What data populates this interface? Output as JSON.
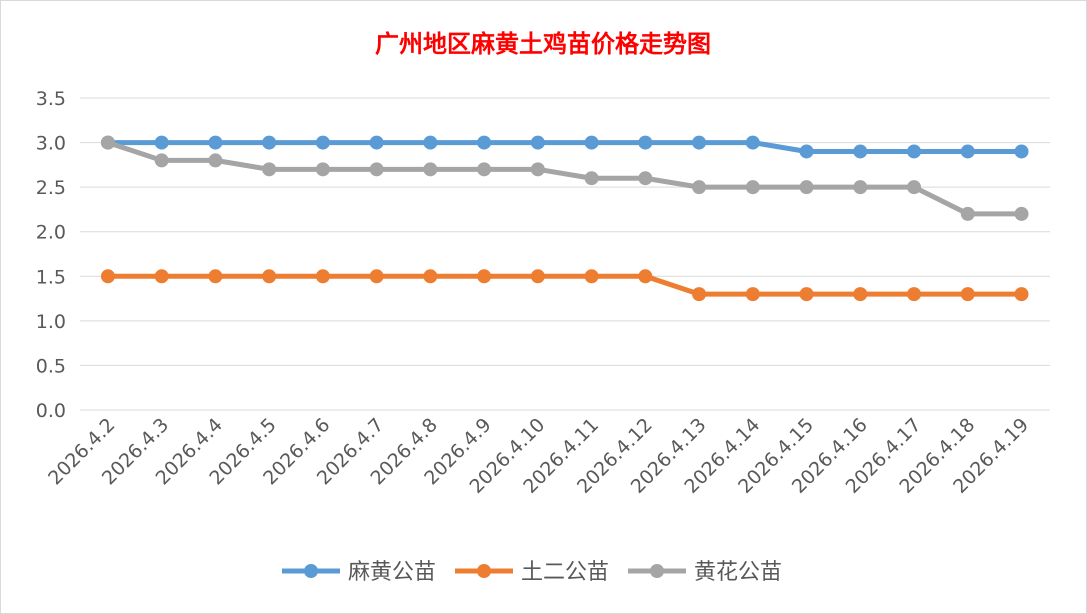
{
  "chart_data": {
    "type": "line",
    "title": "广州地区麻黄土鸡苗价格走势图",
    "xlabel": "",
    "ylabel": "",
    "categories": [
      "2026.4.2",
      "2026.4.3",
      "2026.4.4",
      "2026.4.5",
      "2026.4.6",
      "2026.4.7",
      "2026.4.8",
      "2026.4.9",
      "2026.4.10",
      "2026.4.11",
      "2026.4.12",
      "2026.4.13",
      "2026.4.14",
      "2026.4.15",
      "2026.4.16",
      "2026.4.17",
      "2026.4.18",
      "2026.4.19"
    ],
    "ylim": [
      0,
      3.5
    ],
    "yticks": [
      "0.0",
      "0.5",
      "1.0",
      "1.5",
      "2.0",
      "2.5",
      "3.0",
      "3.5"
    ],
    "grid": true,
    "legend_position": "bottom",
    "series": [
      {
        "name": "麻黄公苗",
        "color": "#5b9bd5",
        "values": [
          3.0,
          3.0,
          3.0,
          3.0,
          3.0,
          3.0,
          3.0,
          3.0,
          3.0,
          3.0,
          3.0,
          3.0,
          3.0,
          2.9,
          2.9,
          2.9,
          2.9,
          2.9
        ]
      },
      {
        "name": "土二公苗",
        "color": "#ed7d31",
        "values": [
          1.5,
          1.5,
          1.5,
          1.5,
          1.5,
          1.5,
          1.5,
          1.5,
          1.5,
          1.5,
          1.5,
          1.3,
          1.3,
          1.3,
          1.3,
          1.3,
          1.3,
          1.3
        ]
      },
      {
        "name": "黄花公苗",
        "color": "#a5a5a5",
        "values": [
          3.0,
          2.8,
          2.8,
          2.7,
          2.7,
          2.7,
          2.7,
          2.7,
          2.7,
          2.6,
          2.6,
          2.5,
          2.5,
          2.5,
          2.5,
          2.5,
          2.2,
          2.2
        ]
      }
    ]
  }
}
